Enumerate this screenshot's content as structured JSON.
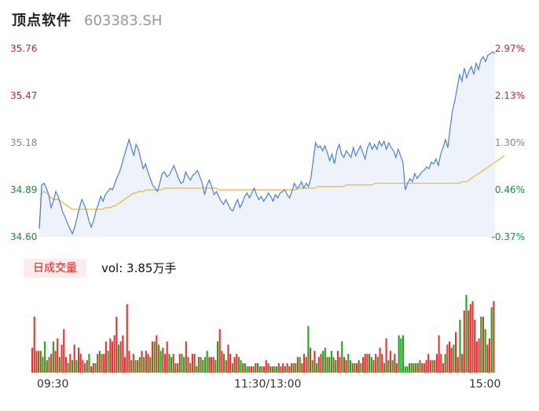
{
  "header": {
    "name": "顶点软件",
    "code": "603383.SH"
  },
  "price_axis": {
    "left_labels": [
      "35.76",
      "35.47",
      "35.18",
      "34.89",
      "34.60"
    ],
    "right_labels": [
      "2.97%",
      "2.13%",
      "1.30%",
      "0.46%",
      "-0.37%"
    ],
    "label_colors": [
      "#e02020",
      "#e02020",
      "#888888",
      "#0a9a2a",
      "#0a9a2a"
    ]
  },
  "volume_panel": {
    "tab_label": "日成交量",
    "readout": "vol: 3.85万手"
  },
  "time_axis": {
    "labels": [
      "09:30",
      "11:30/13:00",
      "15:00"
    ]
  },
  "colors": {
    "price_line": "#4a7fe0",
    "avg_line": "#f0b428",
    "up": "#e83030",
    "down": "#1aa51a",
    "fill": "#eef3fb"
  },
  "chart_data": [
    {
      "type": "line",
      "title": "",
      "ylim": [
        34.6,
        35.76
      ],
      "series": [
        {
          "values": [
            34.65,
            34.92,
            34.93,
            34.9,
            34.86,
            34.78,
            34.82,
            34.88,
            34.85,
            34.8,
            34.75,
            34.72,
            34.68,
            34.65,
            34.62,
            34.66,
            34.72,
            34.78,
            34.83,
            34.8,
            34.76,
            34.7,
            34.66,
            34.7,
            34.76,
            34.8,
            34.85,
            34.82,
            34.86,
            34.88,
            34.9,
            34.89,
            34.93,
            34.97,
            35.0,
            35.05,
            35.1,
            35.15,
            35.2,
            35.15,
            35.1,
            35.17,
            35.14,
            35.08,
            35.02,
            35.05,
            35.0,
            34.96,
            34.92,
            34.9,
            34.88,
            34.93,
            34.99,
            35.0,
            34.97,
            34.98,
            35.01,
            35.04,
            35.0,
            34.96,
            34.93,
            34.94,
            35.0,
            34.97,
            34.95,
            34.98,
            34.99,
            35.01,
            34.97,
            34.93,
            34.86,
            34.92,
            34.95,
            34.91,
            34.86,
            34.88,
            34.85,
            34.82,
            34.8,
            34.83,
            34.8,
            34.77,
            34.76,
            34.8,
            34.83,
            34.78,
            34.81,
            34.85,
            34.87,
            34.84,
            34.87,
            34.9,
            34.86,
            34.83,
            34.85,
            34.82,
            34.84,
            34.87,
            34.85,
            34.82,
            34.86,
            34.84,
            34.87,
            34.88,
            34.89,
            34.86,
            34.84,
            34.88,
            34.93,
            34.9,
            34.91,
            34.94,
            34.9,
            34.93,
            34.91,
            34.96,
            35.07,
            35.18,
            35.15,
            35.16,
            35.13,
            35.16,
            35.12,
            35.07,
            35.11,
            35.05,
            35.13,
            35.17,
            35.11,
            35.09,
            35.13,
            35.11,
            35.09,
            35.15,
            35.1,
            35.13,
            35.16,
            35.12,
            35.08,
            35.15,
            35.18,
            35.14,
            35.17,
            35.14,
            35.19,
            35.16,
            35.19,
            35.14,
            35.18,
            35.15,
            35.13,
            35.09,
            35.14,
            35.1,
            35.06,
            34.89,
            34.93,
            34.96,
            34.94,
            34.99,
            34.96,
            34.98,
            35.0,
            35.01,
            35.03,
            35.02,
            35.06,
            35.05,
            35.08,
            35.04,
            35.11,
            35.15,
            35.2,
            35.15,
            35.27,
            35.38,
            35.44,
            35.52,
            35.6,
            35.56,
            35.64,
            35.58,
            35.62,
            35.65,
            35.6,
            35.67,
            35.63,
            35.69,
            35.71,
            35.68,
            35.72,
            35.73,
            35.74,
            35.73
          ]
        },
        {
          "values": [
            34.65,
            34.87,
            34.88,
            34.87,
            34.86,
            34.84,
            34.83,
            34.83,
            34.83,
            34.82,
            34.81,
            34.8,
            34.79,
            34.78,
            34.77,
            34.77,
            34.77,
            34.77,
            34.77,
            34.77,
            34.77,
            34.77,
            34.77,
            34.77,
            34.77,
            34.77,
            34.77,
            34.77,
            34.78,
            34.78,
            34.78,
            34.79,
            34.79,
            34.8,
            34.81,
            34.82,
            34.83,
            34.84,
            34.85,
            34.86,
            34.87,
            34.87,
            34.88,
            34.88,
            34.88,
            34.89,
            34.89,
            34.89,
            34.89,
            34.89,
            34.89,
            34.89,
            34.89,
            34.9,
            34.9,
            34.9,
            34.9,
            34.9,
            34.9,
            34.9,
            34.9,
            34.9,
            34.9,
            34.9,
            34.9,
            34.9,
            34.9,
            34.9,
            34.9,
            34.9,
            34.9,
            34.9,
            34.9,
            34.9,
            34.9,
            34.9,
            34.89,
            34.89,
            34.89,
            34.89,
            34.89,
            34.89,
            34.89,
            34.89,
            34.89,
            34.89,
            34.89,
            34.89,
            34.89,
            34.89,
            34.89,
            34.89,
            34.89,
            34.89,
            34.89,
            34.89,
            34.89,
            34.89,
            34.89,
            34.89,
            34.89,
            34.89,
            34.89,
            34.89,
            34.89,
            34.89,
            34.89,
            34.89,
            34.89,
            34.89,
            34.9,
            34.9,
            34.9,
            34.9,
            34.9,
            34.9,
            34.9,
            34.9,
            34.91,
            34.91,
            34.91,
            34.91,
            34.91,
            34.91,
            34.91,
            34.91,
            34.91,
            34.91,
            34.91,
            34.91,
            34.92,
            34.92,
            34.92,
            34.92,
            34.92,
            34.92,
            34.92,
            34.92,
            34.92,
            34.92,
            34.92,
            34.92,
            34.93,
            34.93,
            34.93,
            34.93,
            34.93,
            34.93,
            34.93,
            34.93,
            34.93,
            34.93,
            34.93,
            34.93,
            34.93,
            34.93,
            34.93,
            34.93,
            34.93,
            34.93,
            34.93,
            34.93,
            34.93,
            34.93,
            34.93,
            34.93,
            34.93,
            34.93,
            34.93,
            34.93,
            34.93,
            34.93,
            34.93,
            34.93,
            34.93,
            34.93,
            34.93,
            34.93,
            34.93,
            34.94,
            34.94,
            34.94,
            34.95,
            34.96,
            34.97,
            34.98,
            34.99,
            35.0,
            35.01,
            35.02,
            35.03,
            35.04,
            35.05,
            35.06,
            35.07,
            35.08,
            35.09,
            35.1
          ]
        }
      ]
    },
    {
      "type": "bar",
      "title": "",
      "values": [
        8,
        18,
        7,
        7,
        7,
        5,
        10,
        4,
        5,
        6,
        10,
        7,
        11,
        5,
        9,
        14,
        5,
        3,
        6,
        4,
        9,
        4,
        8,
        6,
        4,
        3,
        4,
        6,
        2,
        3,
        3,
        6,
        7,
        6,
        6,
        10,
        7,
        11,
        10,
        12,
        18,
        9,
        10,
        12,
        5,
        22,
        7,
        4,
        6,
        4,
        4,
        5,
        7,
        5,
        7,
        6,
        5,
        10,
        10,
        12,
        9,
        7,
        8,
        6,
        10,
        6,
        5,
        6,
        3,
        3,
        6,
        6,
        5,
        10,
        5,
        3,
        6,
        6,
        2,
        5,
        5,
        4,
        5,
        7,
        5,
        5,
        5,
        4,
        10,
        14,
        7,
        6,
        4,
        9,
        6,
        3,
        5,
        6,
        5,
        4,
        3,
        3,
        2,
        2,
        2,
        2,
        3,
        3,
        2,
        2,
        2,
        4,
        3,
        2,
        2,
        2,
        2,
        3,
        2,
        3,
        2,
        3,
        2,
        3,
        3,
        3,
        5,
        5,
        3,
        6,
        5,
        15,
        8,
        4,
        7,
        3,
        5,
        6,
        7,
        8,
        5,
        5,
        7,
        5,
        4,
        7,
        5,
        10,
        5,
        4,
        6,
        4,
        3,
        3,
        3,
        4,
        3,
        5,
        6,
        6,
        6,
        5,
        4,
        6,
        5,
        8,
        6,
        3,
        11,
        4,
        7,
        4,
        6,
        3,
        12,
        11,
        12,
        2,
        2,
        3,
        3,
        3,
        3,
        3,
        4,
        3,
        3,
        4,
        6,
        4,
        4,
        4,
        6,
        12,
        6,
        3,
        6,
        9,
        10,
        8,
        9,
        13,
        5,
        17,
        6,
        20,
        25,
        20,
        22,
        23,
        17,
        10,
        11,
        18,
        18,
        14,
        9,
        11,
        21,
        23
      ],
      "colors": [
        "r",
        "r",
        "r",
        "g",
        "r",
        "g",
        "g",
        "r",
        "g",
        "r",
        "g",
        "r",
        "r",
        "g",
        "r",
        "r",
        "r",
        "g",
        "r",
        "g",
        "r",
        "g",
        "r",
        "r",
        "r",
        "g",
        "r",
        "g",
        "r",
        "r",
        "g",
        "r",
        "g",
        "r",
        "r",
        "r",
        "g",
        "r",
        "r",
        "r",
        "r",
        "g",
        "r",
        "r",
        "r",
        "r",
        "r",
        "g",
        "r",
        "g",
        "r",
        "g",
        "r",
        "g",
        "r",
        "r",
        "g",
        "r",
        "g",
        "r",
        "g",
        "g",
        "r",
        "r",
        "r",
        "g",
        "g",
        "r",
        "r",
        "g",
        "r",
        "g",
        "g",
        "r",
        "r",
        "g",
        "r",
        "r",
        "g",
        "g",
        "r",
        "g",
        "g",
        "g",
        "r",
        "r",
        "r",
        "g",
        "g",
        "r",
        "r",
        "g",
        "r",
        "r",
        "r",
        "g",
        "r",
        "r",
        "g",
        "g",
        "r",
        "g",
        "g",
        "r",
        "r",
        "g",
        "r",
        "g",
        "r",
        "g",
        "r",
        "r",
        "r",
        "g",
        "r",
        "g",
        "g",
        "r",
        "r",
        "r",
        "g",
        "r",
        "r",
        "g",
        "r",
        "g",
        "r",
        "g",
        "r",
        "r",
        "r",
        "g",
        "r",
        "g",
        "r",
        "g",
        "r",
        "r",
        "g",
        "g",
        "r",
        "g",
        "g",
        "r",
        "g",
        "r",
        "r",
        "g",
        "r",
        "r",
        "g",
        "g",
        "r",
        "g",
        "r",
        "r",
        "g",
        "r",
        "r",
        "r",
        "g",
        "g",
        "r",
        "r",
        "g",
        "r",
        "r",
        "g",
        "r",
        "g",
        "r",
        "g",
        "r",
        "r",
        "g",
        "g",
        "g",
        "g",
        "g",
        "g",
        "g",
        "r",
        "g",
        "r",
        "g",
        "r",
        "r",
        "r",
        "r",
        "r",
        "g",
        "r",
        "r",
        "r",
        "r",
        "r",
        "g",
        "r",
        "r",
        "r",
        "g",
        "r",
        "r",
        "g",
        "r",
        "r",
        "g",
        "r",
        "r",
        "r",
        "r",
        "r",
        "r",
        "g",
        "r",
        "g",
        "r",
        "r",
        "g",
        "r"
      ]
    }
  ]
}
